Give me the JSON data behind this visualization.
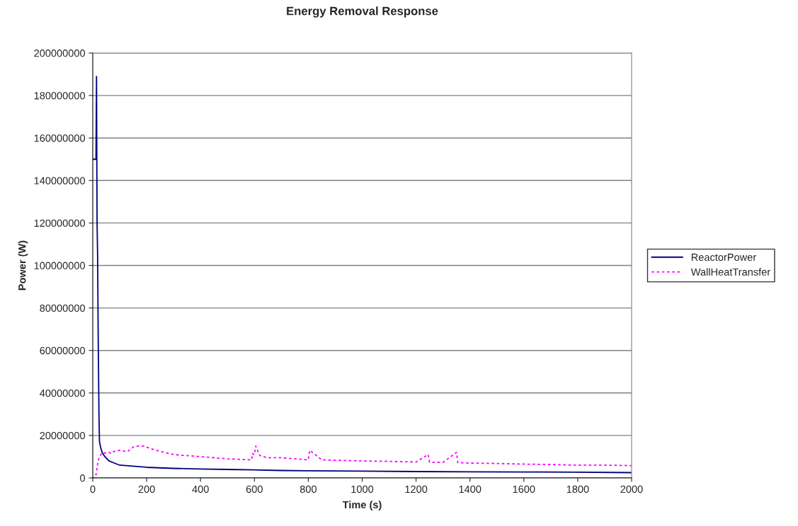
{
  "chart_data": {
    "type": "line",
    "title": "Energy Removal Response",
    "xlabel": "Time (s)",
    "ylabel": "Power (W)",
    "xlim": [
      0,
      2000
    ],
    "xticks": [
      0,
      200,
      400,
      600,
      800,
      1000,
      1200,
      1400,
      1600,
      1800,
      2000
    ],
    "ylim": [
      0,
      200000000
    ],
    "yticks": [
      0,
      20000000,
      40000000,
      60000000,
      80000000,
      100000000,
      120000000,
      140000000,
      160000000,
      180000000,
      200000000
    ],
    "grid": "y",
    "legend": "right",
    "marker": "none",
    "series": [
      {
        "name": "ReactorPower",
        "color": "#000080",
        "line_style": "solid",
        "x": [
          0,
          12,
          14,
          16,
          18,
          20,
          23,
          25,
          30,
          35,
          45,
          60,
          80,
          100,
          150,
          200,
          300,
          400,
          500,
          600,
          700,
          800,
          1000,
          1200,
          1400,
          1600,
          1800,
          2000
        ],
        "values": [
          150000000,
          150000000,
          189000000,
          120000000,
          105000000,
          70000000,
          30000000,
          17000000,
          14000000,
          12000000,
          10000000,
          8000000,
          7000000,
          6000000,
          5500000,
          5000000,
          4500000,
          4200000,
          4000000,
          3800000,
          3500000,
          3400000,
          3200000,
          3000000,
          2900000,
          2800000,
          2700000,
          2500000
        ]
      },
      {
        "name": "WallHeatTransfer",
        "color": "#ff00ff",
        "line_style": "dashed",
        "x": [
          0,
          10,
          15,
          20,
          25,
          30,
          40,
          50,
          60,
          70,
          80,
          100,
          120,
          130,
          150,
          170,
          190,
          210,
          250,
          300,
          400,
          500,
          590,
          592,
          600,
          605,
          620,
          650,
          700,
          750,
          800,
          805,
          850,
          900,
          1000,
          1100,
          1200,
          1245,
          1250,
          1300,
          1350,
          1355,
          1400,
          1500,
          1600,
          1700,
          1800,
          1900,
          2000
        ],
        "values": [
          0,
          0,
          4000000,
          8000000,
          10000000,
          11000000,
          12000000,
          11500000,
          12000000,
          11500000,
          12500000,
          13000000,
          12500000,
          12500000,
          14500000,
          15000000,
          15000000,
          14000000,
          12500000,
          11000000,
          10000000,
          9000000,
          8500000,
          11500000,
          11000000,
          15000000,
          10500000,
          9500000,
          9500000,
          9000000,
          8500000,
          13000000,
          8500000,
          8300000,
          8000000,
          7800000,
          7500000,
          11000000,
          7400000,
          7300000,
          12000000,
          7200000,
          7000000,
          6800000,
          6500000,
          6300000,
          6000000,
          6000000,
          5800000
        ]
      }
    ]
  }
}
